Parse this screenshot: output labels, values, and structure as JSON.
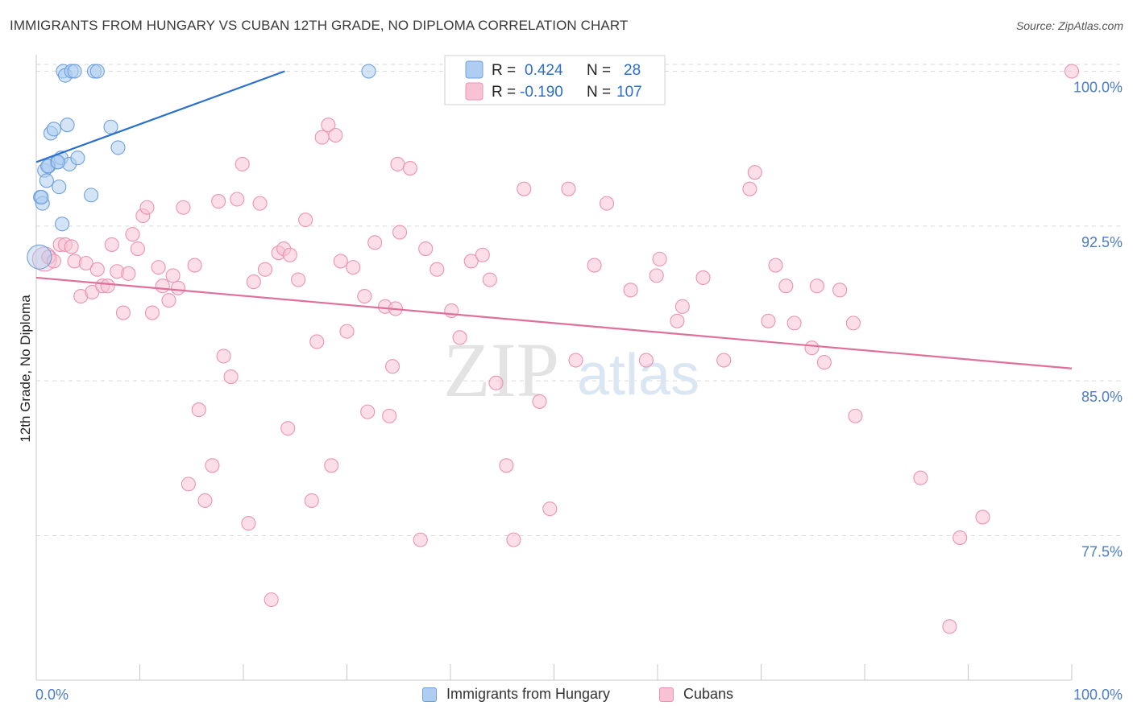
{
  "title": "IMMIGRANTS FROM HUNGARY VS CUBAN 12TH GRADE, NO DIPLOMA CORRELATION CHART",
  "source": "Source: ZipAtlas.com",
  "watermark": {
    "zip": "ZIP",
    "atlas": "atlas"
  },
  "colors": {
    "blue_fill": "#aecdf0",
    "blue_stroke": "#6fa0dc",
    "blue_line": "#2a6fcc",
    "pink_fill": "#f7c3d4",
    "pink_stroke": "#ec93b0",
    "pink_line": "#e0709a",
    "tick_label": "#4a7cc7",
    "grid": "#d9d9d9"
  },
  "legend": {
    "r_label": "R =",
    "n_label": "N =",
    "rows": [
      {
        "series": "Immigrants from Hungary",
        "r": "0.424",
        "n": "28"
      },
      {
        "series": "Cubans",
        "r": "-0.190",
        "n": "107"
      }
    ]
  },
  "chart_data": {
    "type": "scatter",
    "title": "IMMIGRANTS FROM HUNGARY VS CUBAN 12TH GRADE, NO DIPLOMA CORRELATION CHART",
    "xlabel": "",
    "ylabel": "12th Grade, No Diploma",
    "xlim": [
      0,
      100
    ],
    "ylim": [
      70.5,
      100.8
    ],
    "x_tick_labels": [
      "0.0%",
      "100.0%"
    ],
    "y_ticks": [
      77.5,
      85.0,
      92.5,
      100.0
    ],
    "y_tick_labels": [
      "77.5%",
      "85.0%",
      "92.5%",
      "100.0%"
    ],
    "legend_position": "top-center",
    "series": [
      {
        "name": "Immigrants from Hungary",
        "r": 0.424,
        "n": 28,
        "trend": {
          "x": [
            0,
            24
          ],
          "y": [
            95.6,
            100.0
          ]
        },
        "points": [
          {
            "x": 0.3,
            "y": 91.0,
            "big": true
          },
          {
            "x": 0.4,
            "y": 93.9
          },
          {
            "x": 0.6,
            "y": 93.6
          },
          {
            "x": 0.8,
            "y": 95.2
          },
          {
            "x": 1.0,
            "y": 94.7
          },
          {
            "x": 1.2,
            "y": 95.4
          },
          {
            "x": 1.4,
            "y": 97.0
          },
          {
            "x": 1.7,
            "y": 97.2
          },
          {
            "x": 2.0,
            "y": 95.6
          },
          {
            "x": 2.2,
            "y": 94.4
          },
          {
            "x": 2.4,
            "y": 95.8
          },
          {
            "x": 2.5,
            "y": 92.6
          },
          {
            "x": 2.6,
            "y": 100.0
          },
          {
            "x": 2.8,
            "y": 99.8
          },
          {
            "x": 3.0,
            "y": 97.4
          },
          {
            "x": 3.2,
            "y": 95.5
          },
          {
            "x": 3.4,
            "y": 100.0
          },
          {
            "x": 3.7,
            "y": 100.0
          },
          {
            "x": 4.0,
            "y": 95.8
          },
          {
            "x": 5.3,
            "y": 94.0
          },
          {
            "x": 5.6,
            "y": 100.0
          },
          {
            "x": 5.9,
            "y": 100.0
          },
          {
            "x": 7.2,
            "y": 97.3
          },
          {
            "x": 7.9,
            "y": 96.3
          },
          {
            "x": 32.1,
            "y": 100.0
          },
          {
            "x": 1.1,
            "y": 95.4
          },
          {
            "x": 2.1,
            "y": 95.6
          },
          {
            "x": 0.5,
            "y": 93.9
          }
        ]
      },
      {
        "name": "Cubans",
        "r": -0.19,
        "n": 107,
        "trend": {
          "x": [
            0,
            100
          ],
          "y": [
            90.0,
            85.6
          ]
        },
        "points": [
          {
            "x": 0.8,
            "y": 90.9,
            "big": true
          },
          {
            "x": 1.2,
            "y": 91.0
          },
          {
            "x": 1.7,
            "y": 90.8
          },
          {
            "x": 2.3,
            "y": 91.6
          },
          {
            "x": 2.8,
            "y": 91.6
          },
          {
            "x": 3.4,
            "y": 91.5
          },
          {
            "x": 3.7,
            "y": 90.8
          },
          {
            "x": 4.3,
            "y": 89.1
          },
          {
            "x": 4.8,
            "y": 90.7
          },
          {
            "x": 5.4,
            "y": 89.3
          },
          {
            "x": 5.9,
            "y": 90.4
          },
          {
            "x": 6.4,
            "y": 89.6
          },
          {
            "x": 6.9,
            "y": 89.6
          },
          {
            "x": 7.3,
            "y": 91.6
          },
          {
            "x": 7.8,
            "y": 90.3
          },
          {
            "x": 8.4,
            "y": 88.3
          },
          {
            "x": 8.9,
            "y": 90.2
          },
          {
            "x": 9.3,
            "y": 92.1
          },
          {
            "x": 9.8,
            "y": 91.4
          },
          {
            "x": 10.3,
            "y": 93.0
          },
          {
            "x": 10.7,
            "y": 93.4
          },
          {
            "x": 11.2,
            "y": 88.3
          },
          {
            "x": 11.8,
            "y": 90.5
          },
          {
            "x": 12.2,
            "y": 89.6
          },
          {
            "x": 12.8,
            "y": 88.9
          },
          {
            "x": 13.2,
            "y": 90.1
          },
          {
            "x": 13.7,
            "y": 89.5
          },
          {
            "x": 14.2,
            "y": 93.4
          },
          {
            "x": 14.7,
            "y": 80.0
          },
          {
            "x": 15.3,
            "y": 90.6
          },
          {
            "x": 15.7,
            "y": 83.6
          },
          {
            "x": 16.3,
            "y": 79.2
          },
          {
            "x": 17.0,
            "y": 80.9
          },
          {
            "x": 17.6,
            "y": 93.7
          },
          {
            "x": 18.1,
            "y": 86.2
          },
          {
            "x": 18.8,
            "y": 85.2
          },
          {
            "x": 19.4,
            "y": 93.8
          },
          {
            "x": 19.9,
            "y": 95.5
          },
          {
            "x": 20.5,
            "y": 78.1
          },
          {
            "x": 21.0,
            "y": 89.8
          },
          {
            "x": 21.6,
            "y": 93.6
          },
          {
            "x": 22.1,
            "y": 90.4
          },
          {
            "x": 22.7,
            "y": 74.4
          },
          {
            "x": 23.4,
            "y": 91.2
          },
          {
            "x": 23.9,
            "y": 91.4
          },
          {
            "x": 24.3,
            "y": 82.7
          },
          {
            "x": 25.3,
            "y": 89.9
          },
          {
            "x": 26.0,
            "y": 92.8
          },
          {
            "x": 26.6,
            "y": 79.2
          },
          {
            "x": 27.1,
            "y": 86.9
          },
          {
            "x": 27.6,
            "y": 96.8
          },
          {
            "x": 28.2,
            "y": 97.4
          },
          {
            "x": 28.5,
            "y": 80.9
          },
          {
            "x": 28.9,
            "y": 96.9
          },
          {
            "x": 29.4,
            "y": 90.8
          },
          {
            "x": 30.0,
            "y": 87.4
          },
          {
            "x": 30.6,
            "y": 90.5
          },
          {
            "x": 31.7,
            "y": 89.1
          },
          {
            "x": 32.0,
            "y": 83.5
          },
          {
            "x": 32.7,
            "y": 91.7
          },
          {
            "x": 33.7,
            "y": 88.6
          },
          {
            "x": 34.1,
            "y": 83.3
          },
          {
            "x": 34.4,
            "y": 85.7
          },
          {
            "x": 34.9,
            "y": 95.5
          },
          {
            "x": 35.1,
            "y": 92.2
          },
          {
            "x": 36.1,
            "y": 95.3
          },
          {
            "x": 37.1,
            "y": 77.3
          },
          {
            "x": 37.6,
            "y": 91.4
          },
          {
            "x": 38.7,
            "y": 90.4
          },
          {
            "x": 40.1,
            "y": 88.4
          },
          {
            "x": 40.9,
            "y": 87.1
          },
          {
            "x": 42.0,
            "y": 90.8
          },
          {
            "x": 43.1,
            "y": 91.1
          },
          {
            "x": 43.8,
            "y": 89.9
          },
          {
            "x": 44.4,
            "y": 84.9
          },
          {
            "x": 45.4,
            "y": 80.9
          },
          {
            "x": 46.1,
            "y": 77.3
          },
          {
            "x": 47.1,
            "y": 94.3
          },
          {
            "x": 48.6,
            "y": 84.0
          },
          {
            "x": 49.6,
            "y": 78.8
          },
          {
            "x": 51.4,
            "y": 94.3
          },
          {
            "x": 52.1,
            "y": 86.0
          },
          {
            "x": 53.9,
            "y": 90.6
          },
          {
            "x": 55.1,
            "y": 93.6
          },
          {
            "x": 57.4,
            "y": 89.4
          },
          {
            "x": 58.9,
            "y": 86.0
          },
          {
            "x": 59.9,
            "y": 90.1
          },
          {
            "x": 61.9,
            "y": 87.9
          },
          {
            "x": 62.4,
            "y": 88.6
          },
          {
            "x": 64.4,
            "y": 90.0
          },
          {
            "x": 66.4,
            "y": 86.0
          },
          {
            "x": 68.9,
            "y": 94.3
          },
          {
            "x": 69.4,
            "y": 95.1
          },
          {
            "x": 70.7,
            "y": 87.9
          },
          {
            "x": 71.4,
            "y": 90.6
          },
          {
            "x": 72.4,
            "y": 89.6
          },
          {
            "x": 73.2,
            "y": 87.8
          },
          {
            "x": 74.9,
            "y": 86.6
          },
          {
            "x": 75.4,
            "y": 89.6
          },
          {
            "x": 76.1,
            "y": 85.9
          },
          {
            "x": 77.6,
            "y": 89.4
          },
          {
            "x": 78.9,
            "y": 87.8
          },
          {
            "x": 79.1,
            "y": 83.3
          },
          {
            "x": 85.4,
            "y": 80.3
          },
          {
            "x": 88.2,
            "y": 73.1
          },
          {
            "x": 89.2,
            "y": 77.4
          },
          {
            "x": 91.4,
            "y": 78.4
          },
          {
            "x": 100.0,
            "y": 100.0
          },
          {
            "x": 34.7,
            "y": 88.5
          },
          {
            "x": 24.5,
            "y": 91.1
          },
          {
            "x": 60.2,
            "y": 90.9
          }
        ]
      }
    ]
  }
}
